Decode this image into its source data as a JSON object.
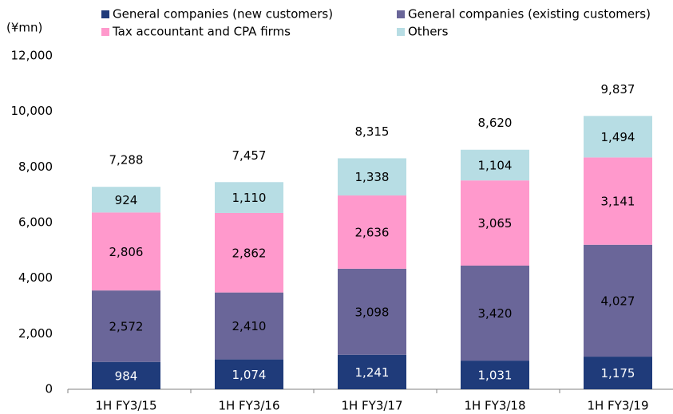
{
  "chart_data": {
    "type": "stacked_bar",
    "y_axis_label": "(¥mn)",
    "categories": [
      "1H FY3/15",
      "1H FY3/16",
      "1H FY3/17",
      "1H FY3/18",
      "1H FY3/19"
    ],
    "series": [
      {
        "name": "General companies (new customers)",
        "color": "#1f3b7a",
        "values": [
          984,
          1074,
          1241,
          1031,
          1175
        ],
        "value_labels": [
          "984",
          "1,074",
          "1,241",
          "1,031",
          "1,175"
        ]
      },
      {
        "name": "General companies (existing customers)",
        "color": "#6a6699",
        "values": [
          2572,
          2410,
          3098,
          3420,
          4027
        ],
        "value_labels": [
          "2,572",
          "2,410",
          "3,098",
          "3,420",
          "4,027"
        ]
      },
      {
        "name": "Tax accountant and CPA firms",
        "color": "#ff99cc",
        "values": [
          2806,
          2862,
          2636,
          3065,
          3141
        ],
        "value_labels": [
          "2,806",
          "2,862",
          "2,636",
          "3,065",
          "3,141"
        ]
      },
      {
        "name": "Others",
        "color": "#b7dde4",
        "values": [
          924,
          1110,
          1338,
          1104,
          1494
        ],
        "value_labels": [
          "924",
          "1,110",
          "1,338",
          "1,104",
          "1,494"
        ]
      }
    ],
    "totals": {
      "values": [
        7288,
        7457,
        8315,
        8620,
        9837
      ],
      "value_labels": [
        "7,288",
        "7,457",
        "8,315",
        "8,620",
        "9,837"
      ]
    },
    "ylim": [
      0,
      12000
    ],
    "yticks": [
      0,
      {
        "value": 2000,
        "label": "2,000"
      },
      {
        "value": 4000,
        "label": "4,000"
      },
      {
        "value": 6000,
        "label": "6,000"
      },
      {
        "value": 8000,
        "label": "8,000"
      },
      {
        "value": 10000,
        "label": "10,000"
      },
      {
        "value": 12000,
        "label": "12,000"
      }
    ],
    "grid": false
  }
}
